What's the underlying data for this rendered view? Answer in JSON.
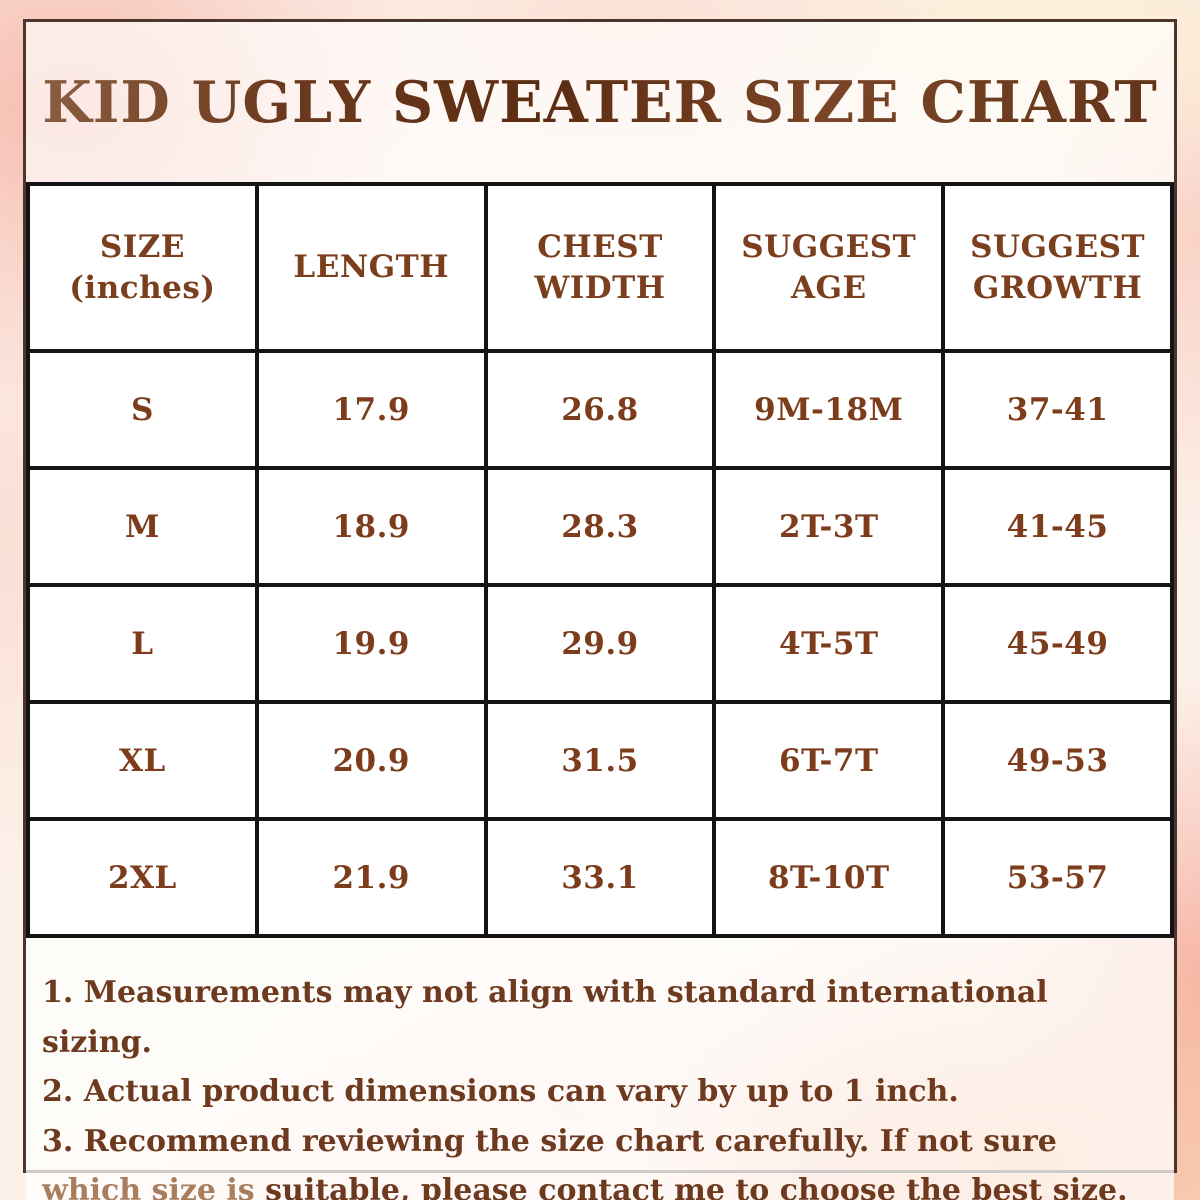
{
  "title": "KID UGLY SWEATER SIZE CHART",
  "table": {
    "headers": [
      {
        "line1": "SIZE",
        "line2": "(inches)"
      },
      {
        "line1": "LENGTH",
        "line2": ""
      },
      {
        "line1": "CHEST",
        "line2": "WIDTH"
      },
      {
        "line1": "SUGGEST",
        "line2": "AGE"
      },
      {
        "line1": "SUGGEST",
        "line2": "GROWTH"
      }
    ],
    "rows": [
      {
        "size": "S",
        "length": "17.9",
        "chest_width": "26.8",
        "suggest_age": "9M-18M",
        "suggest_growth": "37-41"
      },
      {
        "size": "M",
        "length": "18.9",
        "chest_width": "28.3",
        "suggest_age": "2T-3T",
        "suggest_growth": "41-45"
      },
      {
        "size": "L",
        "length": "19.9",
        "chest_width": "29.9",
        "suggest_age": "4T-5T",
        "suggest_growth": "45-49"
      },
      {
        "size": "XL",
        "length": "20.9",
        "chest_width": "31.5",
        "suggest_age": "6T-7T",
        "suggest_growth": "49-53"
      },
      {
        "size": "2XL",
        "length": "21.9",
        "chest_width": "33.1",
        "suggest_age": "8T-10T",
        "suggest_growth": "53-57"
      }
    ]
  },
  "notes": {
    "note1": "1. Measurements may not align with standard international sizing.",
    "note2": "2. Actual product dimensions can vary by up to 1 inch.",
    "note3_parts": [
      "3. Recommend reviewing the size chart carefully. If not sure ",
      "which size is",
      " suitable, please contact me to choose the best size."
    ]
  },
  "colors": {
    "title_brown": "#6b3a1e",
    "header_text": "#7b3f1e",
    "cell_text": "#7d3c1b",
    "notes_text": "#6d3a1f",
    "faded_text": "#a87e5e",
    "table_border": "#141414",
    "frame_border": "#4a362b",
    "watercolor_pink": "#f6b7aa",
    "watercolor_peach": "#f6ba94",
    "watercolor_cream": "#fceed3",
    "cell_background": "#ffffff"
  },
  "chart_data": {
    "type": "table",
    "title": "KID UGLY SWEATER SIZE CHART",
    "units": "inches",
    "columns": [
      "SIZE (inches)",
      "LENGTH",
      "CHEST WIDTH",
      "SUGGEST AGE",
      "SUGGEST GROWTH"
    ],
    "rows": [
      [
        "S",
        "17.9",
        "26.8",
        "9M-18M",
        "37-41"
      ],
      [
        "M",
        "18.9",
        "28.3",
        "2T-3T",
        "41-45"
      ],
      [
        "L",
        "19.9",
        "29.9",
        "4T-5T",
        "45-49"
      ],
      [
        "XL",
        "20.9",
        "31.5",
        "6T-7T",
        "49-53"
      ],
      [
        "2XL",
        "21.9",
        "33.1",
        "8T-10T",
        "53-57"
      ]
    ]
  }
}
